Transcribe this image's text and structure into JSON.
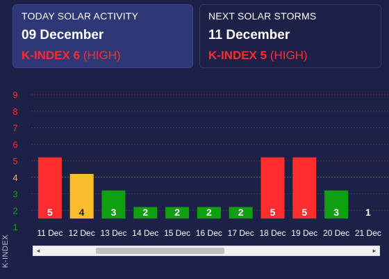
{
  "today": {
    "heading": "TODAY SOLAR ACTIVITY",
    "date": "09 December",
    "k_index": "K-INDEX 6",
    "level": "(HIGH)"
  },
  "next": {
    "heading": "NEXT SOLAR STORMS",
    "date": "11 December",
    "k_index": "K-INDEX 5",
    "level": "(HIGH)"
  },
  "colors": {
    "high": "#ff2d2d",
    "medium": "#fbbd2c",
    "low": "#109f10",
    "background": "#1d2148"
  },
  "chart_data": {
    "type": "bar",
    "ylabel": "K-INDEX",
    "y_ticks": [
      "1",
      "2",
      "3",
      "4",
      "5",
      "6",
      "7",
      "8",
      "9"
    ],
    "ylim": [
      1,
      9
    ],
    "bar_baseline": 1.5,
    "categories": [
      "11 Dec",
      "12 Dec",
      "13 Dec",
      "14 Dec",
      "15 Dec",
      "16 Dec",
      "17 Dec",
      "18 Dec",
      "19 Dec",
      "20 Dec",
      "21 Dec"
    ],
    "values": [
      5,
      4,
      3,
      2,
      2,
      2,
      2,
      5,
      5,
      3,
      1
    ],
    "bar_levels": [
      "high",
      "medium",
      "low",
      "low",
      "low",
      "low",
      "low",
      "high",
      "high",
      "low",
      "low"
    ],
    "grid": true
  },
  "scrollbar": {
    "left_arrow": "◄",
    "right_arrow": "►"
  }
}
